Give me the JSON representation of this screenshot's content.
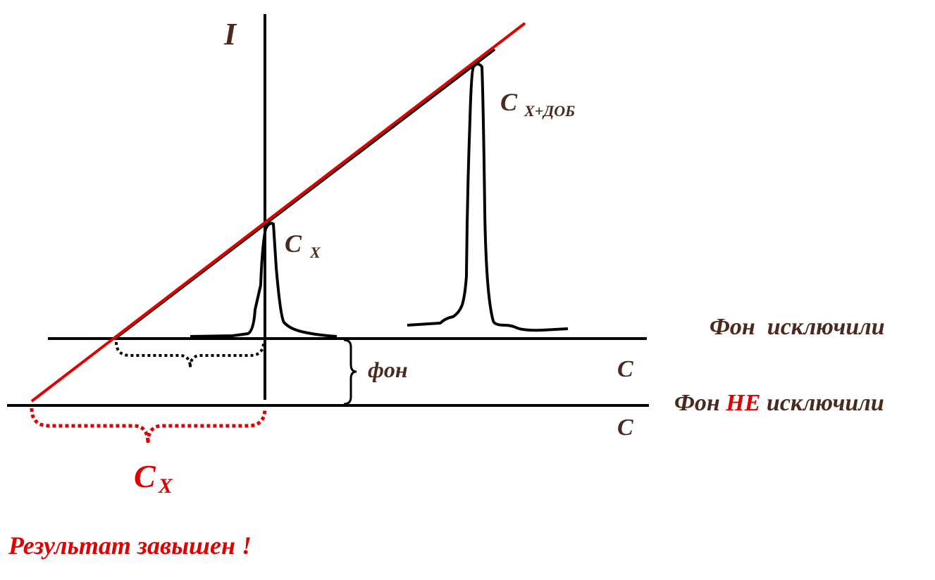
{
  "labels": {
    "y_axis": "I",
    "x_axis_upper": "C",
    "x_axis_lower": "C",
    "peak_small_main": "C",
    "peak_small_sub": "X",
    "peak_large_main": "C",
    "peak_large_sub": "X+ДОБ",
    "background_gap": "фон",
    "upper_baseline_caption": "Фон  исключили",
    "lower_baseline_prefix": "Фон ",
    "lower_baseline_emphasis": "НЕ",
    "lower_baseline_suffix": " исключили",
    "extrapolated_main": "C",
    "extrapolated_sub": "X",
    "conclusion": "Результат завышен !"
  },
  "colors": {
    "ink": "#000000",
    "label_brown": "#4a2a1f",
    "highlight_red": "#e00000"
  }
}
